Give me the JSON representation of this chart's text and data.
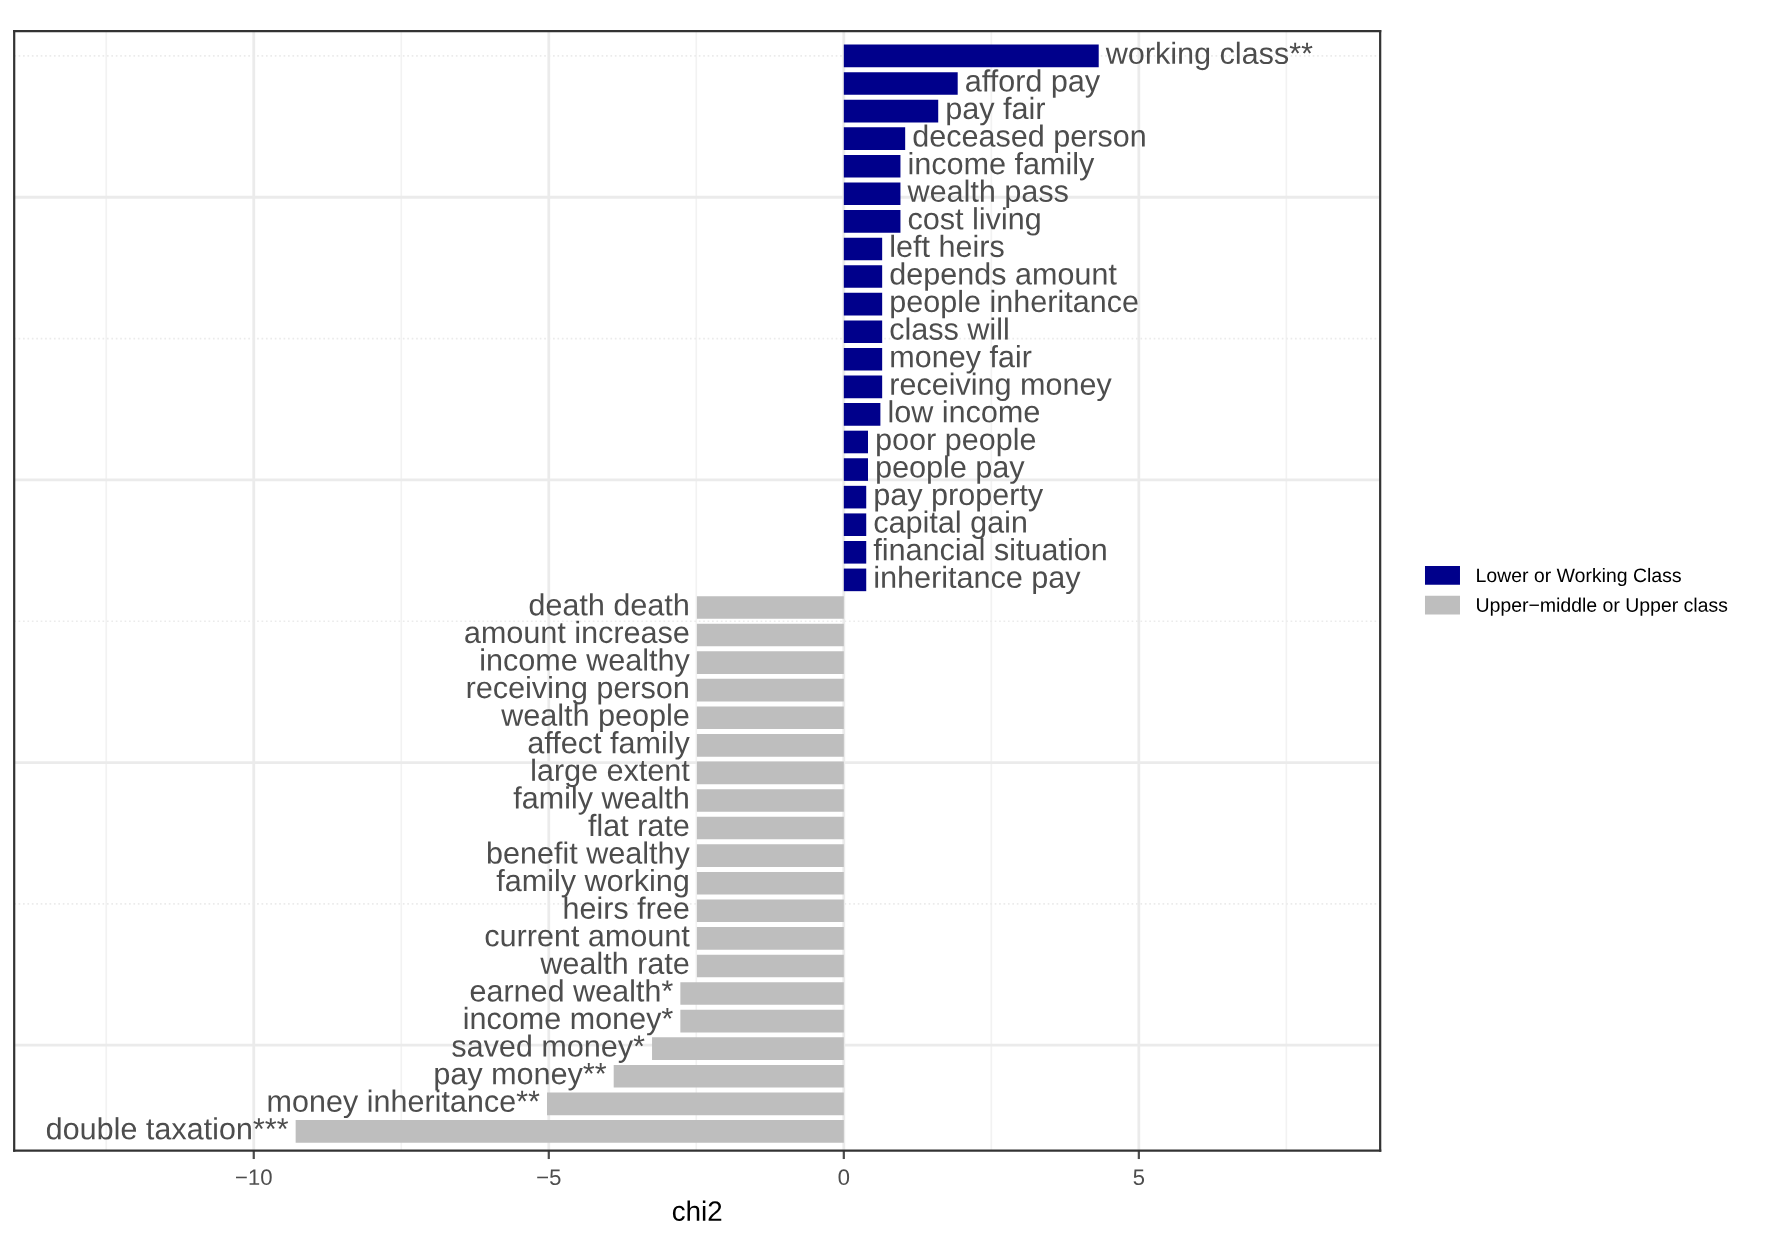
{
  "chart_data": {
    "type": "bar",
    "orientation": "horizontal",
    "xlabel": "chi2",
    "categories": [
      "working class**",
      "afford pay",
      "pay fair",
      "deceased person",
      "income family",
      "wealth pass",
      "cost living",
      "left heirs",
      "depends amount",
      "people inheritance",
      "class will",
      "money fair",
      "receiving money",
      "low income",
      "poor people",
      "people pay",
      "pay property",
      "capital gain",
      "financial situation",
      "inheritance pay",
      "death death",
      "amount increase",
      "income wealthy",
      "receiving person",
      "wealth people",
      "affect family",
      "large extent",
      "family wealth",
      "flat rate",
      "benefit wealthy",
      "family working",
      "heirs free",
      "current amount",
      "wealth rate",
      "earned wealth*",
      "income money*",
      "saved money*",
      "pay money**",
      "money inheritance**",
      "double taxation***"
    ],
    "series": [
      {
        "name": "Lower or Working Class",
        "color": "#00008b",
        "values": [
          4.32,
          1.93,
          1.6,
          1.04,
          0.96,
          0.96,
          0.96,
          0.65,
          0.65,
          0.65,
          0.65,
          0.65,
          0.65,
          0.62,
          0.41,
          0.41,
          0.38,
          0.38,
          0.38,
          0.38,
          null,
          null,
          null,
          null,
          null,
          null,
          null,
          null,
          null,
          null,
          null,
          null,
          null,
          null,
          null,
          null,
          null,
          null,
          null,
          null
        ]
      },
      {
        "name": "Upper−middle or Upper class",
        "color": "#bebebe",
        "values": [
          null,
          null,
          null,
          null,
          null,
          null,
          null,
          null,
          null,
          null,
          null,
          null,
          null,
          null,
          null,
          null,
          null,
          null,
          null,
          null,
          -2.49,
          -2.49,
          -2.49,
          -2.49,
          -2.49,
          -2.49,
          -2.49,
          -2.49,
          -2.49,
          -2.49,
          -2.49,
          -2.49,
          -2.49,
          -2.49,
          -2.77,
          -2.77,
          -3.25,
          -3.9,
          -5.03,
          -9.29
        ]
      }
    ],
    "xlim": [
      -14.06,
      9.09
    ],
    "xticks": [
      {
        "value": -10,
        "label": "−10"
      },
      {
        "value": -5,
        "label": "−5"
      },
      0,
      5
    ],
    "grid": true,
    "legend": "right",
    "tick_labels": "x"
  }
}
